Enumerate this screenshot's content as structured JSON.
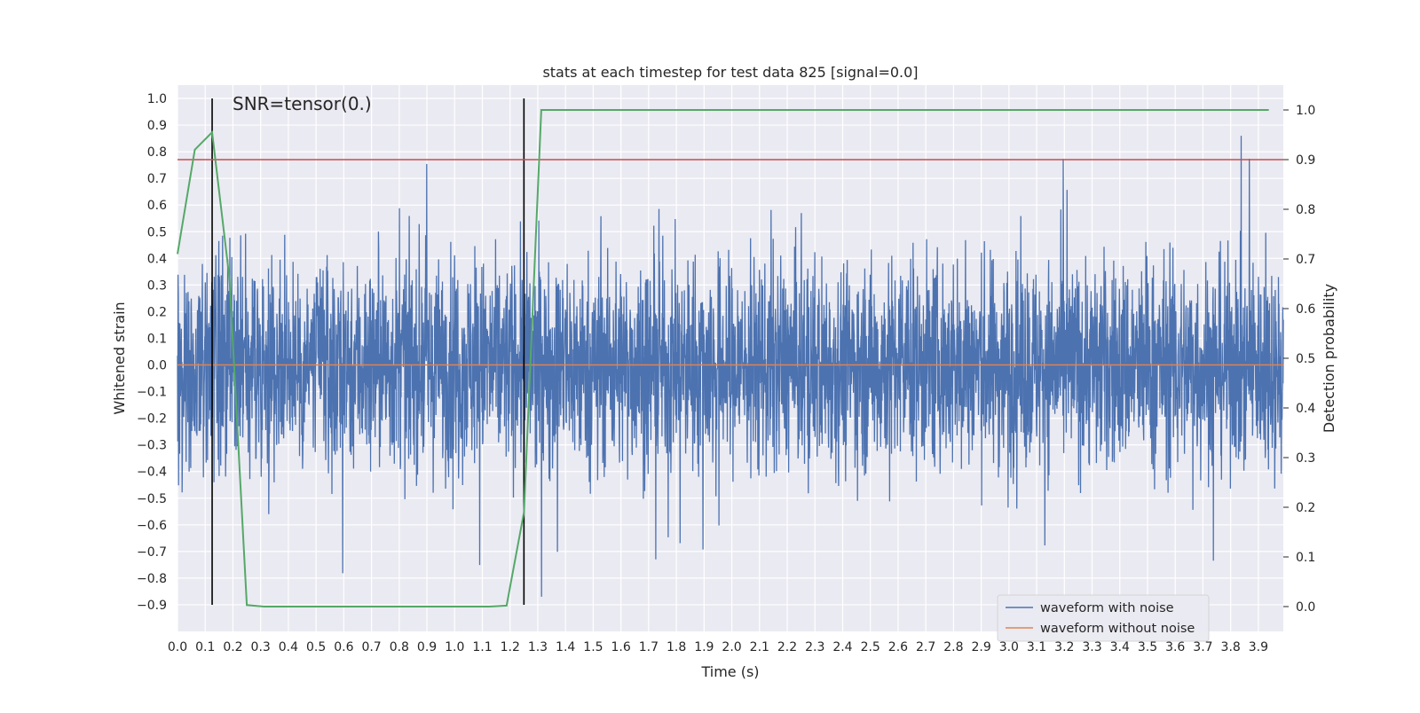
{
  "chart_data": {
    "type": "line",
    "title": "stats at each timestep for test data 825 [signal=0.0]",
    "annotation": "SNR=tensor(0.)",
    "xlabel": "Time (s)",
    "ylabel": "Whitened strain",
    "y2label": "Detection probability",
    "xlim": [
      0.0,
      3.99
    ],
    "ylim": [
      -1.0,
      1.05
    ],
    "y2lim": [
      -0.05,
      1.05
    ],
    "xticks": [
      "0.0",
      "0.1",
      "0.2",
      "0.3",
      "0.4",
      "0.5",
      "0.6",
      "0.7",
      "0.8",
      "0.9",
      "1.0",
      "1.1",
      "1.2",
      "1.3",
      "1.4",
      "1.5",
      "1.6",
      "1.7",
      "1.8",
      "1.9",
      "2.0",
      "2.1",
      "2.2",
      "2.3",
      "2.4",
      "2.5",
      "2.6",
      "2.7",
      "2.8",
      "2.9",
      "3.0",
      "3.1",
      "3.2",
      "3.3",
      "3.4",
      "3.5",
      "3.6",
      "3.7",
      "3.8",
      "3.9"
    ],
    "yticks": [
      "1.0",
      "0.9",
      "0.8",
      "0.7",
      "0.6",
      "0.5",
      "0.4",
      "0.3",
      "0.2",
      "0.1",
      "0.0",
      "−0.1",
      "−0.2",
      "−0.3",
      "−0.4",
      "−0.5",
      "−0.6",
      "−0.7",
      "−0.8",
      "−0.9"
    ],
    "y2ticks": [
      "1.0",
      "0.9",
      "0.8",
      "0.7",
      "0.6",
      "0.5",
      "0.4",
      "0.3",
      "0.2",
      "0.1",
      "0.0"
    ],
    "grid": true,
    "legend_position": "lower right",
    "series": [
      {
        "name": "waveform with noise",
        "color": "#4c72b0",
        "style": "noise",
        "amplitude_range": [
          -0.87,
          1.0
        ],
        "sample_count": 4096
      },
      {
        "name": "waveform without noise",
        "color": "#dd8452",
        "style": "flat",
        "value": 0.0
      }
    ],
    "detection_probability": {
      "color": "#55a868",
      "axis": "right",
      "x": [
        0.0,
        0.0625,
        0.125,
        0.1875,
        0.25,
        0.3125,
        0.375,
        0.4375,
        0.5,
        0.5625,
        0.625,
        0.6875,
        0.75,
        0.8125,
        0.875,
        0.9375,
        1.0,
        1.0625,
        1.125,
        1.1875,
        1.25,
        1.3125,
        1.375,
        1.4375,
        1.5,
        1.5625,
        1.625,
        1.6875,
        1.75,
        1.8125,
        1.875,
        1.9375,
        2.0,
        2.0625,
        2.125,
        2.1875,
        2.25,
        2.3125,
        2.375,
        2.4375,
        2.5,
        2.5625,
        2.625,
        2.6875,
        2.75,
        2.8125,
        2.875,
        2.9375,
        3.0,
        3.0625,
        3.125,
        3.1875,
        3.25,
        3.3125,
        3.375,
        3.4375,
        3.5,
        3.5625,
        3.625,
        3.6875,
        3.75,
        3.8125,
        3.875,
        3.9375
      ],
      "y": [
        0.71,
        0.92,
        0.955,
        0.66,
        0.003,
        0.0,
        0.0,
        0.0,
        0.0,
        0.0,
        0.0,
        0.0,
        0.0,
        0.0,
        0.0,
        0.0,
        0.0,
        0.0,
        0.0,
        0.002,
        0.19,
        1.0,
        1.0,
        1.0,
        1.0,
        1.0,
        1.0,
        1.0,
        1.0,
        1.0,
        1.0,
        1.0,
        1.0,
        1.0,
        1.0,
        1.0,
        1.0,
        1.0,
        1.0,
        1.0,
        1.0,
        1.0,
        1.0,
        1.0,
        1.0,
        1.0,
        1.0,
        1.0,
        1.0,
        1.0,
        1.0,
        1.0,
        1.0,
        1.0,
        1.0,
        1.0,
        1.0,
        1.0,
        1.0,
        1.0,
        1.0,
        1.0,
        1.0,
        1.0
      ]
    },
    "threshold": {
      "value": 0.9,
      "axis": "right",
      "color": "#c44e52"
    },
    "vertical_lines": [
      {
        "x": 0.125,
        "y_from": -0.9,
        "y_to": 1.0,
        "color": "#000000"
      },
      {
        "x": 1.25,
        "y_from": -0.9,
        "y_to": 1.0,
        "color": "#000000"
      }
    ],
    "colors": {
      "plot_bg": "#eaeaf2",
      "grid": "#ffffff",
      "text": "#262626"
    }
  }
}
